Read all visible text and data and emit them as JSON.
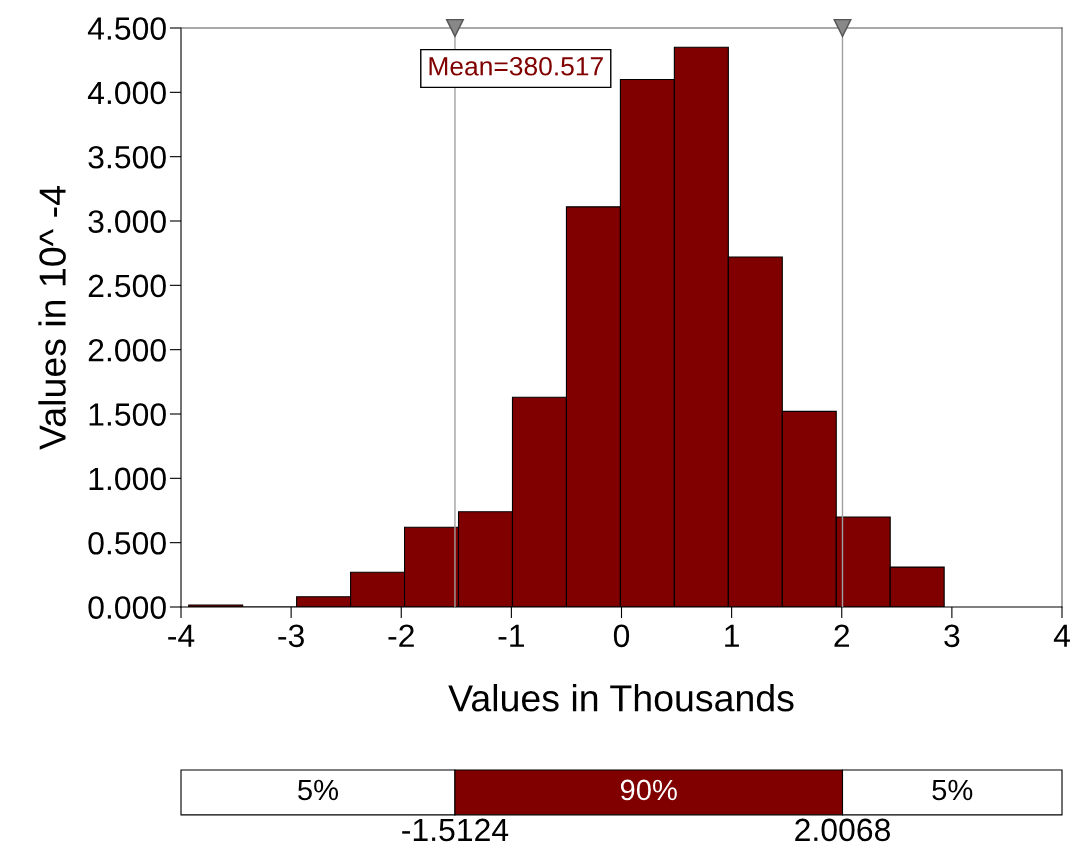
{
  "chart_data": {
    "type": "histogram",
    "bins": [
      -3.93,
      -3.44,
      -2.95,
      -2.46,
      -1.97,
      -1.48,
      -0.99,
      -0.5,
      -0.01,
      0.48,
      0.97,
      1.46,
      1.95,
      2.44,
      2.93
    ],
    "values": [
      0.016,
      0,
      0.08,
      0.27,
      0.62,
      0.74,
      1.63,
      3.11,
      4.1,
      4.35,
      2.72,
      1.52,
      0.7,
      0.31
    ],
    "color": "#800000",
    "xlabel": "Values in Thousands",
    "ylabel": "Values in 10^ -4",
    "xlim": [
      -4,
      4
    ],
    "xticks": [
      -4,
      -3,
      -2,
      -1,
      0,
      1,
      2,
      3,
      4
    ],
    "ylim": [
      0,
      4.5
    ],
    "yticks": [
      {
        "value": 0,
        "label": "0.000"
      },
      {
        "value": 0.5,
        "label": "0.500"
      },
      {
        "value": 1,
        "label": "1.000"
      },
      {
        "value": 1.5,
        "label": "1.500"
      },
      {
        "value": 2,
        "label": "2.000"
      },
      {
        "value": 2.5,
        "label": "2.500"
      },
      {
        "value": 3,
        "label": "3.000"
      },
      {
        "value": 3.5,
        "label": "3.500"
      },
      {
        "value": 4,
        "label": "4.000"
      },
      {
        "value": 4.5,
        "label": "4.500"
      }
    ],
    "ref_lines": [
      {
        "axis": "x",
        "value": -1.5124,
        "color": "#a0a0a0"
      },
      {
        "axis": "x",
        "value": 2.0068,
        "color": "#a0a0a0"
      }
    ],
    "annotations": [
      "Mean=380.517",
      "5%",
      "90%",
      "5%",
      "-1.5124",
      "2.0068"
    ],
    "grid": false
  }
}
